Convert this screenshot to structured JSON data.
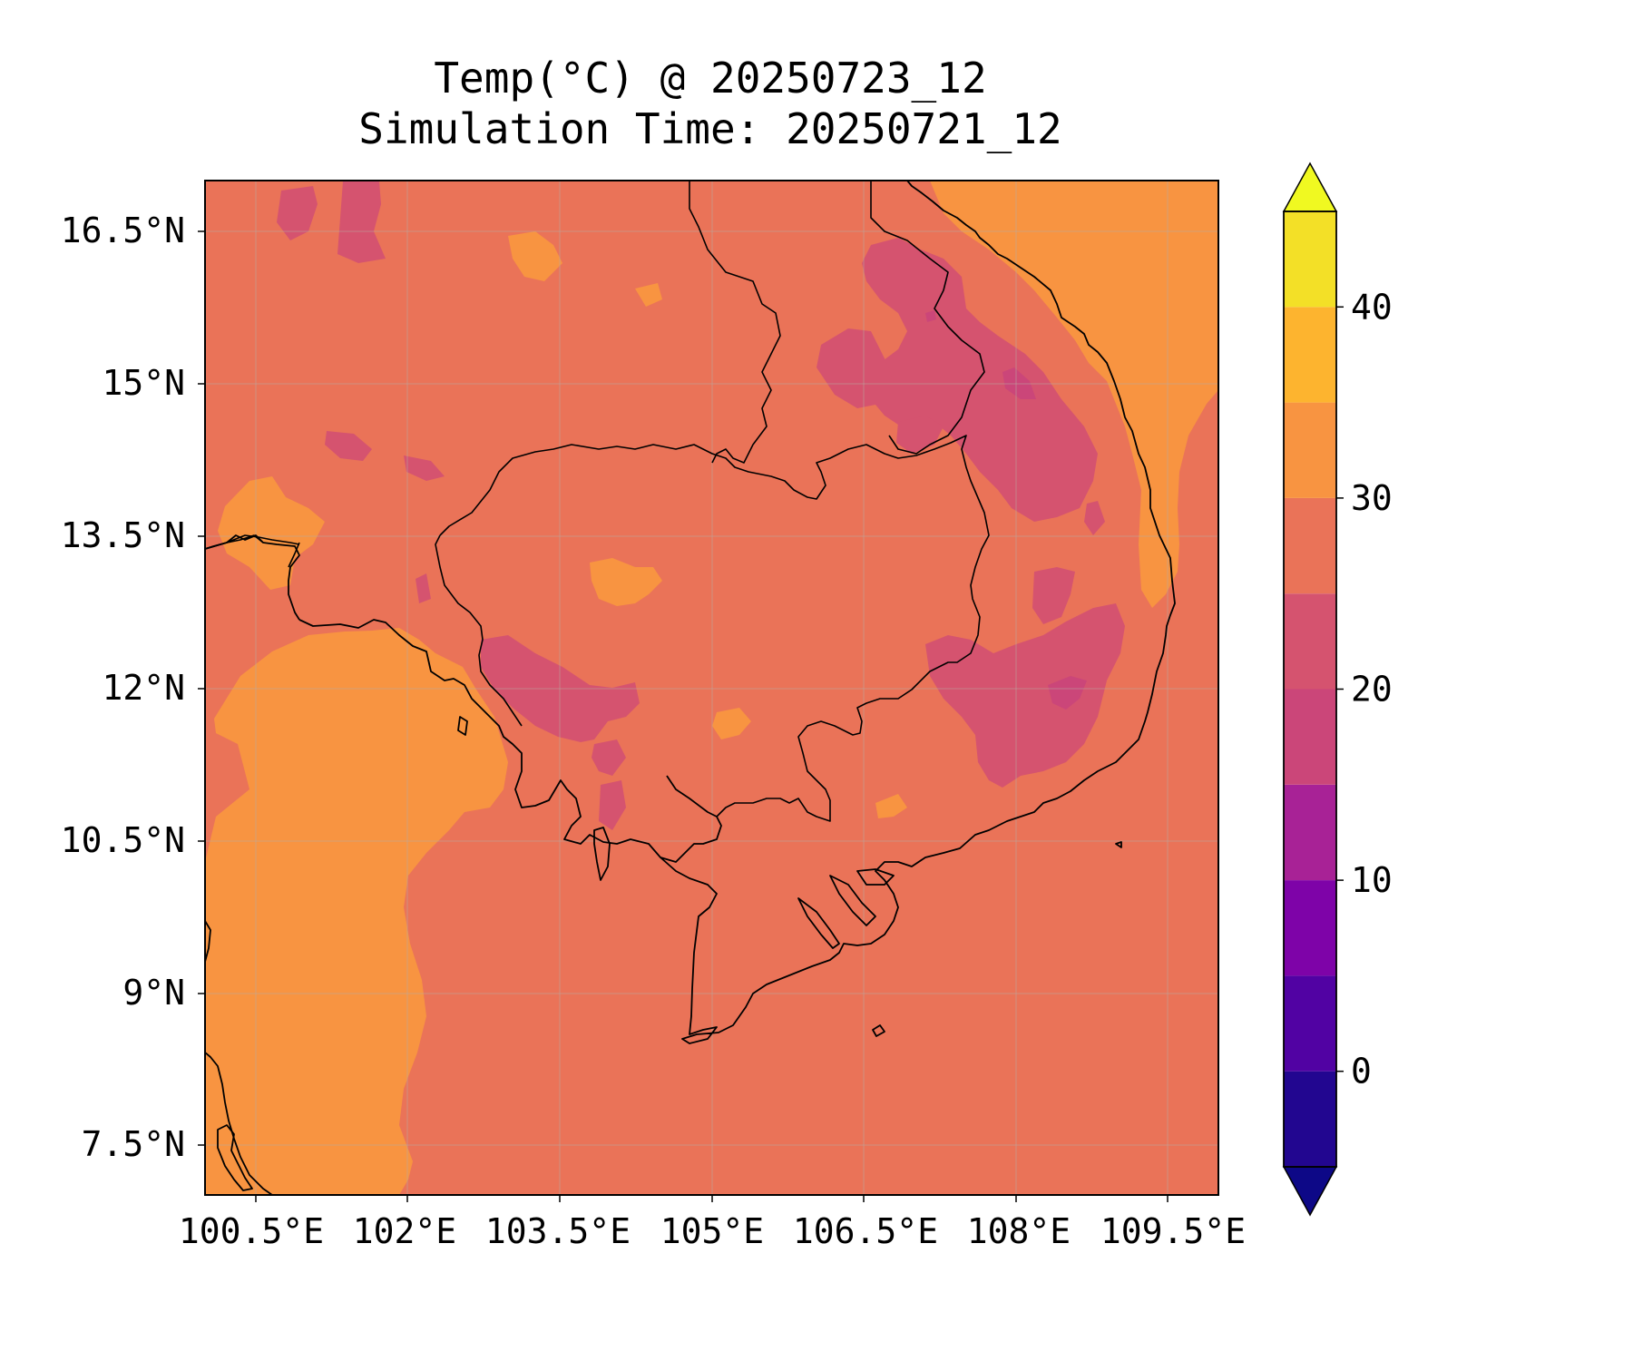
{
  "title": {
    "line1": "Temp(°C) @ 20250723_12",
    "line2": "Simulation Time: 20250721_12"
  },
  "map": {
    "lon_range": [
      100.0,
      110.0
    ],
    "lat_range": [
      7.0,
      17.0
    ],
    "x_ticks": [
      {
        "value": 100.5,
        "label": "100.5°E"
      },
      {
        "value": 102.0,
        "label": "102°E"
      },
      {
        "value": 103.5,
        "label": "103.5°E"
      },
      {
        "value": 105.0,
        "label": "105°E"
      },
      {
        "value": 106.5,
        "label": "106.5°E"
      },
      {
        "value": 108.0,
        "label": "108°E"
      },
      {
        "value": 109.5,
        "label": "109.5°E"
      }
    ],
    "y_ticks": [
      {
        "value": 16.5,
        "label": "16.5°N"
      },
      {
        "value": 15.0,
        "label": "15°N"
      },
      {
        "value": 13.5,
        "label": "13.5°N"
      },
      {
        "value": 12.0,
        "label": "12°N"
      },
      {
        "value": 10.5,
        "label": "10.5°N"
      },
      {
        "value": 9.0,
        "label": "9°N"
      },
      {
        "value": 7.5,
        "label": "7.5°N"
      }
    ],
    "background_class_color": "#ea7358",
    "grid": true
  },
  "colorbar": {
    "levels": [
      -5,
      0,
      5,
      10,
      15,
      20,
      25,
      30,
      35,
      40,
      45
    ],
    "colors": [
      "#220690",
      "#5102a3",
      "#7e03a8",
      "#a82296",
      "#cb4679",
      "#d5536f",
      "#ea7358",
      "#f89441",
      "#fdb42f",
      "#f3e027"
    ],
    "under_color": "#0d0887",
    "over_color": "#f0f921",
    "extend": "both",
    "ticks": [
      {
        "value": 0,
        "label": "0"
      },
      {
        "value": 10,
        "label": "10"
      },
      {
        "value": 20,
        "label": "20"
      },
      {
        "value": 30,
        "label": "30"
      },
      {
        "value": 40,
        "label": "40"
      }
    ]
  }
}
